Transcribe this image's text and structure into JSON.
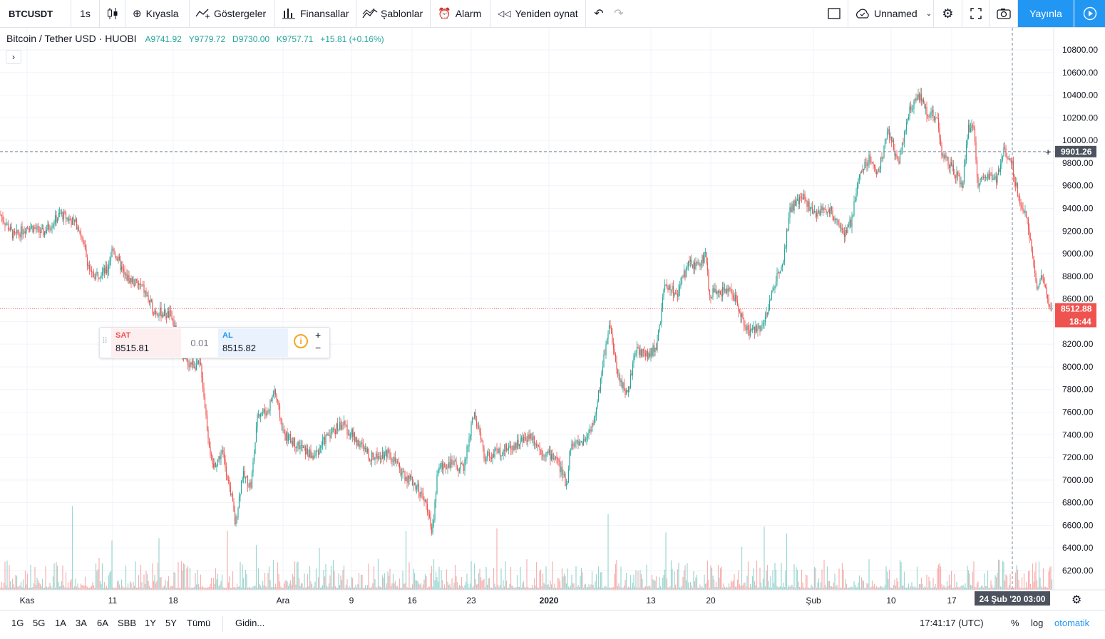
{
  "toolbar": {
    "symbol": "BTCUSDT",
    "interval": "1s",
    "compare": "Kıyasla",
    "indicators": "Göstergeler",
    "financials": "Finansallar",
    "templates": "Şablonlar",
    "alert": "Alarm",
    "replay": "Yeniden oynat",
    "layout_name": "Unnamed",
    "publish": "Yayınla"
  },
  "legend": {
    "title": "Bitcoin / Tether USD · HUOBI",
    "open": "A9741.92",
    "high": "Y9779.72",
    "low": "D9730.00",
    "close": "K9757.71",
    "change": "+15.81 (+0.16%)"
  },
  "trade_panel": {
    "sell_label": "SAT",
    "sell_price": "8515.81",
    "spread": "0.01",
    "buy_label": "AL",
    "buy_price": "8515.82"
  },
  "price_axis": {
    "crosshair_price": "9901.26",
    "last_price": "8512.88",
    "countdown": "18:44",
    "ticks": [
      "10800.00",
      "10600.00",
      "10400.00",
      "10200.00",
      "10000.00",
      "9800.00",
      "9600.00",
      "9400.00",
      "9200.00",
      "9000.00",
      "8800.00",
      "8600.00",
      "8400.00",
      "8200.00",
      "8000.00",
      "7800.00",
      "7600.00",
      "7400.00",
      "7200.00",
      "7000.00",
      "6800.00",
      "6600.00",
      "6400.00",
      "6200.00"
    ]
  },
  "time_axis": {
    "ticks": [
      "Kas",
      "11",
      "18",
      "Ara",
      "9",
      "16",
      "23",
      "2020",
      "13",
      "20",
      "Şub",
      "10",
      "17"
    ],
    "crosshair_label": "24 Şub '20   03:00"
  },
  "bottom_bar": {
    "ranges": [
      "1G",
      "5G",
      "1A",
      "3A",
      "6A",
      "SBB",
      "1Y",
      "5Y",
      "Tümü"
    ],
    "goto": "Gidin...",
    "clock": "17:41:17 (UTC)",
    "percent": "%",
    "log": "log",
    "auto": "otomatik"
  },
  "colors": {
    "up": "#26a69a",
    "down": "#ef5350",
    "accent": "#2196f3",
    "last_price": "#ef5350"
  },
  "chart_data": {
    "type": "candlestick",
    "title": "Bitcoin / Tether USD · HUOBI",
    "ylim": [
      6100,
      10950
    ],
    "grid": true,
    "x": [
      "Kas",
      "11",
      "18",
      "Ara",
      "9",
      "16",
      "23",
      "2020",
      "13",
      "20",
      "Şub",
      "10",
      "17",
      "24 Şub '20"
    ],
    "close": [
      9200,
      8800,
      8400,
      7400,
      7300,
      7100,
      7200,
      7200,
      8300,
      8700,
      9400,
      10200,
      9700,
      8510
    ],
    "last_price": 8512.88,
    "crosshair_price": 9901.26
  }
}
